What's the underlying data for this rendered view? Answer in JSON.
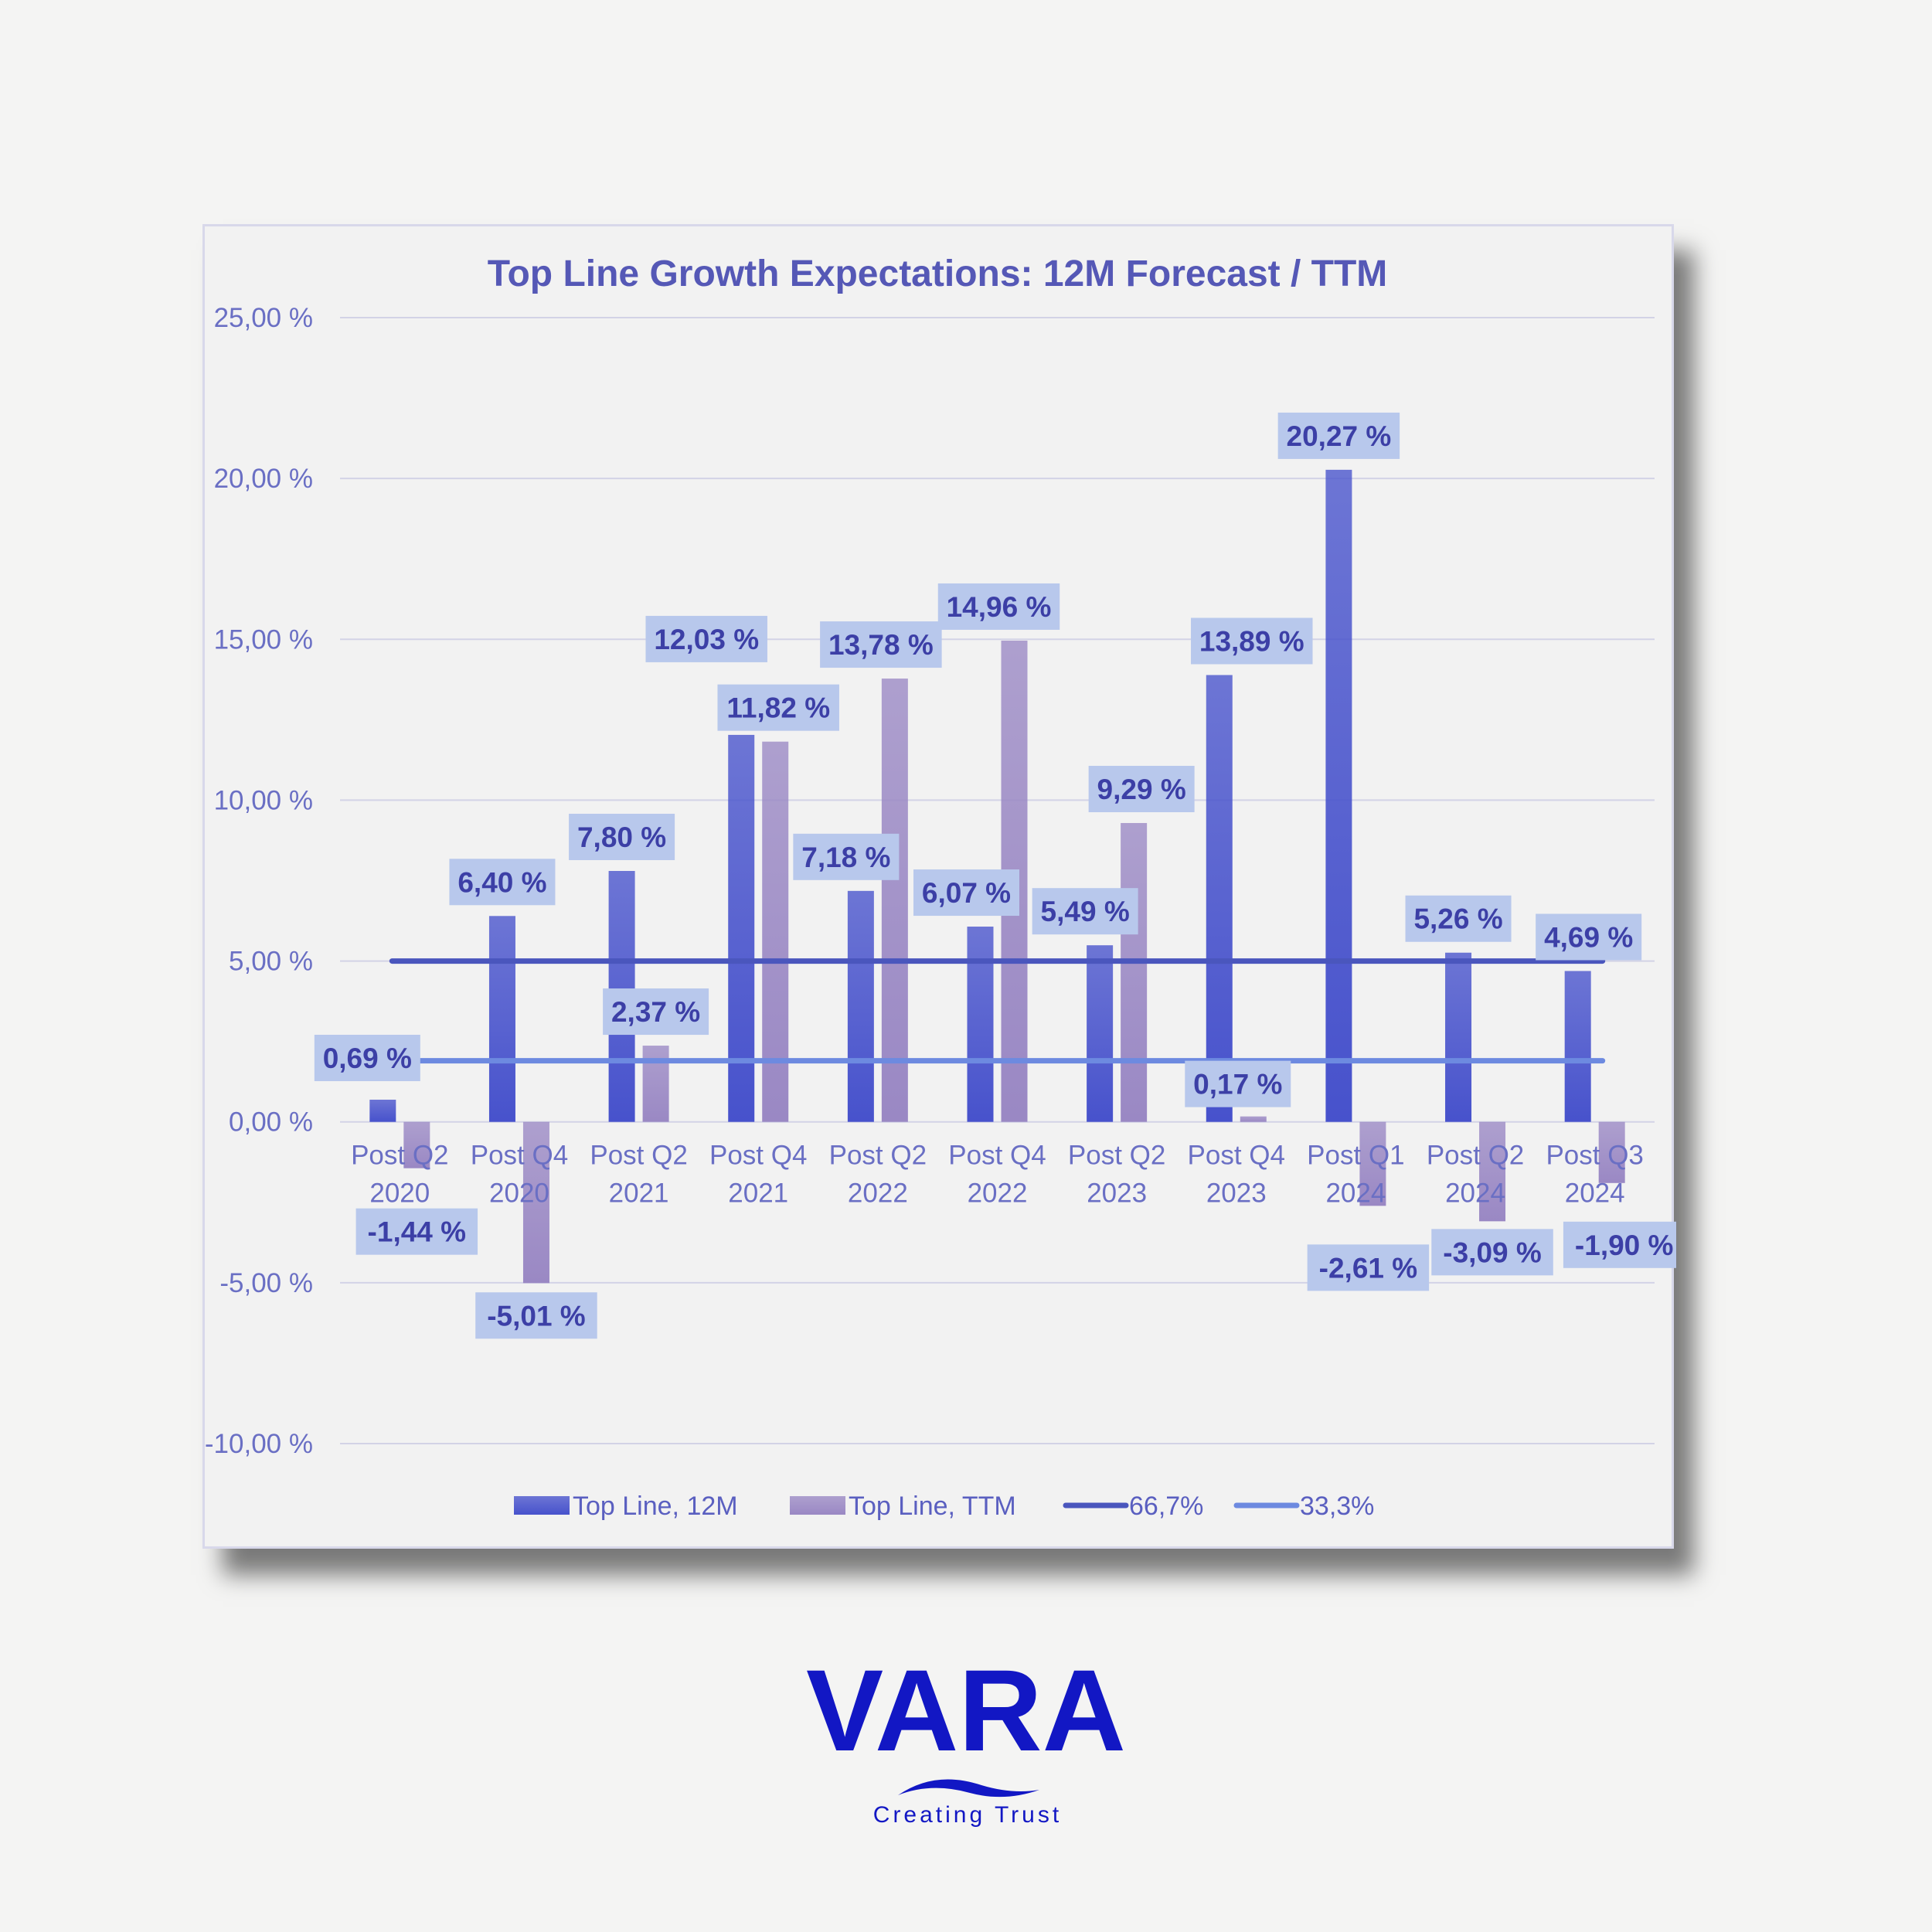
{
  "chart_data": {
    "type": "bar",
    "title": "Top Line Growth Expectations: 12M Forecast / TTM",
    "xlabel": "",
    "ylabel": "",
    "ylim": [
      -10,
      25
    ],
    "yticks": [
      "25,00 %",
      "20,00 %",
      "15,00 %",
      "10,00 %",
      "5,00 %",
      "0,00 %",
      "-5,00 %",
      "-10,00 %"
    ],
    "categories": [
      [
        "Post Q2",
        "2020"
      ],
      [
        "Post Q4",
        "2020"
      ],
      [
        "Post Q2",
        "2021"
      ],
      [
        "Post Q4",
        "2021"
      ],
      [
        "Post Q2",
        "2022"
      ],
      [
        "Post Q4",
        "2022"
      ],
      [
        "Post Q2",
        "2023"
      ],
      [
        "Post Q4",
        "2023"
      ],
      [
        "Post Q1",
        "2024"
      ],
      [
        "Post Q2",
        "2024"
      ],
      [
        "Post Q3",
        "2024"
      ]
    ],
    "series": [
      {
        "name": "Top Line, 12M",
        "color": "#4752cc",
        "values": [
          0.69,
          6.4,
          7.8,
          12.03,
          7.18,
          6.07,
          5.49,
          13.89,
          20.27,
          5.26,
          4.69
        ],
        "labels": [
          "0,69 %",
          "6,40 %",
          "7,80 %",
          "12,03 %",
          "7,18 %",
          "6,07 %",
          "5,49 %",
          "13,89 %",
          "20,27 %",
          "5,26 %",
          "4,69 %"
        ]
      },
      {
        "name": "Top Line, TTM",
        "color": "#9a88c4",
        "values": [
          -1.44,
          -5.01,
          2.37,
          11.82,
          13.78,
          14.96,
          9.29,
          0.17,
          -2.61,
          -3.09,
          -1.9
        ],
        "labels": [
          "-1,44 %",
          "-5,01 %",
          "2,37 %",
          "11,82 %",
          "13,78 %",
          "14,96 %",
          "9,29 %",
          "0,17 %",
          "-2,61 %",
          "-3,09 %",
          "-1,90 %"
        ]
      }
    ],
    "lines": [
      {
        "name": "66,7%",
        "value": 5.0,
        "color": "#4a56bd"
      },
      {
        "name": "33,3%",
        "value": 1.9,
        "color": "#6d8ae0"
      }
    ],
    "legend": "bottom",
    "grid": true
  },
  "brand": {
    "name": "VARA",
    "tagline": "Creating Trust",
    "color": "#1217c4"
  }
}
